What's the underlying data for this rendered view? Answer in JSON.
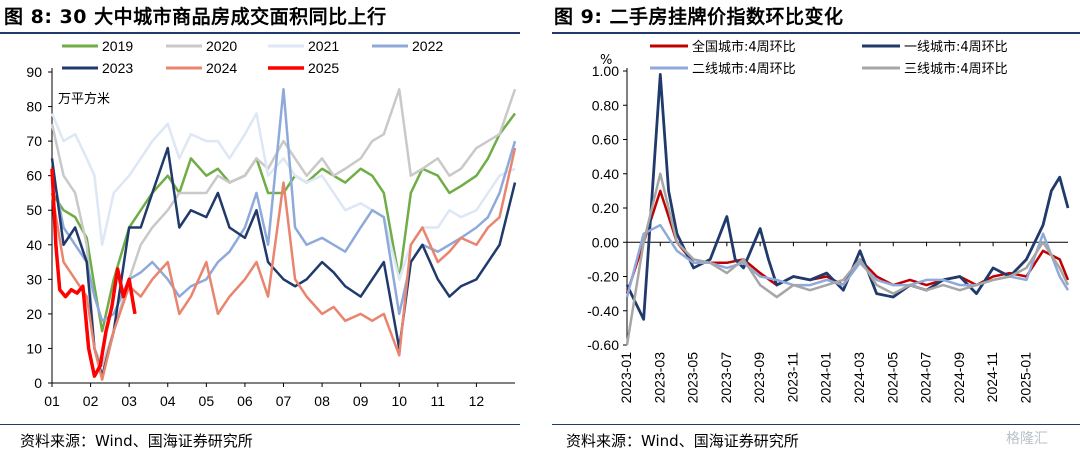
{
  "left_panel": {
    "title": "图 8:  30 大中城市商品房成交面积同比上行",
    "source": "资料来源：Wind、国海证券研究所"
  },
  "right_panel": {
    "title": "图 9:  二手房挂牌价指数环比变化",
    "source": "资料来源：Wind、国海证券研究所"
  },
  "watermark": "格隆汇",
  "chart_data": [
    {
      "type": "line",
      "title": "30 大中城市商品房成交面积同比上行",
      "ylabel": "万平方米",
      "ylim": [
        0,
        90
      ],
      "yticks": [
        0,
        10,
        20,
        30,
        40,
        50,
        60,
        70,
        80,
        90
      ],
      "xlim": [
        1,
        13
      ],
      "xticks": [
        "01",
        "02",
        "03",
        "04",
        "05",
        "06",
        "07",
        "08",
        "09",
        "10",
        "11",
        "12"
      ],
      "legend_position": "top",
      "series": [
        {
          "name": "2019",
          "color": "#70ad47",
          "x": [
            1.0,
            1.3,
            1.6,
            1.9,
            2.1,
            2.3,
            2.6,
            3.0,
            3.3,
            3.6,
            4.0,
            4.3,
            4.6,
            5.0,
            5.3,
            5.6,
            6.0,
            6.3,
            6.6,
            7.0,
            7.3,
            7.6,
            8.0,
            8.3,
            8.6,
            9.0,
            9.3,
            9.6,
            10.0,
            10.3,
            10.6,
            11.0,
            11.3,
            11.6,
            12.0,
            12.3,
            12.6,
            13.0
          ],
          "y": [
            55,
            50,
            48,
            42,
            28,
            15,
            30,
            45,
            50,
            55,
            60,
            55,
            65,
            60,
            62,
            58,
            60,
            65,
            55,
            55,
            60,
            58,
            62,
            60,
            58,
            62,
            60,
            55,
            30,
            55,
            62,
            60,
            55,
            57,
            60,
            65,
            72,
            78
          ]
        },
        {
          "name": "2020",
          "color": "#c9c9c9",
          "x": [
            1.0,
            1.3,
            1.6,
            1.9,
            2.1,
            2.3,
            2.6,
            3.0,
            3.3,
            3.6,
            4.0,
            4.3,
            4.6,
            5.0,
            5.3,
            5.6,
            6.0,
            6.3,
            6.6,
            7.0,
            7.3,
            7.6,
            8.0,
            8.3,
            8.6,
            9.0,
            9.3,
            9.6,
            10.0,
            10.3,
            10.6,
            11.0,
            11.3,
            11.6,
            12.0,
            12.3,
            12.6,
            13.0
          ],
          "y": [
            75,
            60,
            55,
            40,
            10,
            5,
            15,
            30,
            40,
            45,
            50,
            55,
            55,
            55,
            60,
            58,
            60,
            65,
            62,
            70,
            65,
            60,
            65,
            60,
            62,
            65,
            70,
            72,
            85,
            60,
            62,
            65,
            60,
            62,
            68,
            70,
            72,
            85
          ]
        },
        {
          "name": "2021",
          "color": "#dde7f5",
          "x": [
            1.0,
            1.3,
            1.6,
            1.9,
            2.1,
            2.3,
            2.6,
            3.0,
            3.3,
            3.6,
            4.0,
            4.3,
            4.6,
            5.0,
            5.3,
            5.6,
            6.0,
            6.3,
            6.6,
            7.0,
            7.3,
            7.6,
            8.0,
            8.3,
            8.6,
            9.0,
            9.3,
            9.6,
            10.0,
            10.3,
            10.6,
            11.0,
            11.3,
            11.6,
            12.0,
            12.3,
            12.6,
            13.0
          ],
          "y": [
            78,
            70,
            72,
            65,
            60,
            40,
            55,
            60,
            65,
            70,
            75,
            65,
            72,
            70,
            70,
            65,
            72,
            78,
            60,
            65,
            60,
            58,
            60,
            55,
            50,
            52,
            50,
            48,
            30,
            40,
            45,
            45,
            50,
            48,
            50,
            55,
            60,
            62
          ]
        },
        {
          "name": "2022",
          "color": "#8eaadb",
          "x": [
            1.0,
            1.3,
            1.6,
            1.9,
            2.1,
            2.3,
            2.6,
            3.0,
            3.3,
            3.6,
            4.0,
            4.3,
            4.6,
            5.0,
            5.3,
            5.6,
            6.0,
            6.3,
            6.6,
            7.0,
            7.3,
            7.6,
            8.0,
            8.3,
            8.6,
            9.0,
            9.3,
            9.6,
            10.0,
            10.3,
            10.6,
            11.0,
            11.3,
            11.6,
            12.0,
            12.3,
            12.6,
            13.0
          ],
          "y": [
            62,
            45,
            40,
            35,
            25,
            18,
            20,
            30,
            32,
            35,
            30,
            25,
            28,
            30,
            35,
            38,
            45,
            55,
            40,
            85,
            45,
            40,
            42,
            40,
            38,
            45,
            50,
            48,
            20,
            35,
            40,
            38,
            40,
            42,
            45,
            48,
            55,
            70
          ]
        },
        {
          "name": "2023",
          "color": "#1f3a6b",
          "x": [
            1.0,
            1.3,
            1.6,
            1.9,
            2.1,
            2.3,
            2.6,
            3.0,
            3.3,
            3.6,
            4.0,
            4.3,
            4.6,
            5.0,
            5.3,
            5.6,
            6.0,
            6.3,
            6.6,
            7.0,
            7.3,
            7.6,
            8.0,
            8.3,
            8.6,
            9.0,
            9.3,
            9.6,
            10.0,
            10.3,
            10.6,
            11.0,
            11.3,
            11.6,
            12.0,
            12.3,
            12.6,
            13.0
          ],
          "y": [
            65,
            40,
            45,
            35,
            10,
            2,
            15,
            45,
            45,
            55,
            68,
            45,
            50,
            48,
            55,
            45,
            42,
            50,
            35,
            30,
            28,
            30,
            35,
            32,
            28,
            25,
            30,
            35,
            10,
            35,
            40,
            30,
            25,
            28,
            30,
            35,
            40,
            58
          ]
        },
        {
          "name": "2024",
          "color": "#e9846e",
          "x": [
            1.0,
            1.3,
            1.6,
            1.9,
            2.1,
            2.3,
            2.6,
            3.0,
            3.3,
            3.6,
            4.0,
            4.3,
            4.6,
            5.0,
            5.3,
            5.6,
            6.0,
            6.3,
            6.6,
            7.0,
            7.3,
            7.6,
            8.0,
            8.3,
            8.6,
            9.0,
            9.3,
            9.6,
            10.0,
            10.3,
            10.6,
            11.0,
            11.3,
            11.6,
            12.0,
            12.3,
            12.6,
            13.0
          ],
          "y": [
            55,
            35,
            30,
            25,
            10,
            1,
            15,
            28,
            25,
            30,
            35,
            20,
            25,
            35,
            20,
            25,
            30,
            35,
            25,
            58,
            30,
            25,
            20,
            22,
            18,
            20,
            18,
            20,
            8,
            40,
            45,
            35,
            38,
            42,
            40,
            45,
            48,
            68
          ]
        },
        {
          "name": "2025",
          "color": "#ff0000",
          "x": [
            1.0,
            1.1,
            1.2,
            1.35,
            1.5,
            1.65,
            1.8,
            1.95,
            2.1,
            2.25,
            2.4,
            2.55,
            2.7,
            2.85,
            3.0,
            3.15
          ],
          "y": [
            62,
            40,
            27,
            25,
            27,
            26,
            28,
            10,
            2,
            5,
            15,
            22,
            33,
            25,
            30,
            20
          ]
        }
      ]
    },
    {
      "type": "line",
      "title": "二手房挂牌价指数环比变化",
      "ylabel": "%",
      "ylim": [
        -0.6,
        1.0
      ],
      "yticks": [
        "-0.60",
        "-0.40",
        "-0.20",
        "0.00",
        "0.20",
        "0.40",
        "0.60",
        "0.80",
        "1.00"
      ],
      "xticks": [
        "2023-01",
        "2023-03",
        "2023-05",
        "2023-07",
        "2023-09",
        "2023-11",
        "2024-01",
        "2024-03",
        "2024-05",
        "2024-07",
        "2024-09",
        "2024-11",
        "2025-01"
      ],
      "xlim": [
        0,
        26.5
      ],
      "legend_position": "top",
      "series": [
        {
          "name": "全国城市:4周环比",
          "color": "#c00000",
          "x": [
            0,
            1,
            2,
            3,
            4,
            5,
            6,
            7,
            8,
            9,
            10,
            11,
            12,
            13,
            14,
            15,
            16,
            17,
            18,
            19,
            20,
            21,
            22,
            23,
            24,
            25,
            26,
            26.5
          ],
          "y": [
            -0.3,
            0.0,
            0.3,
            0.0,
            -0.12,
            -0.12,
            -0.12,
            -0.1,
            -0.18,
            -0.25,
            -0.2,
            -0.22,
            -0.2,
            -0.25,
            -0.1,
            -0.2,
            -0.25,
            -0.22,
            -0.25,
            -0.22,
            -0.2,
            -0.25,
            -0.2,
            -0.18,
            -0.2,
            -0.05,
            -0.1,
            -0.22
          ]
        },
        {
          "name": "一线城市:4周环比",
          "color": "#1f3a6b",
          "x": [
            0,
            1,
            2,
            2.5,
            3,
            4,
            5,
            6,
            6.5,
            7,
            8,
            8.5,
            9,
            10,
            11,
            12,
            13,
            14,
            15,
            16,
            17,
            18,
            19,
            20,
            21,
            22,
            23,
            24,
            25,
            25.5,
            26,
            26.5
          ],
          "y": [
            -0.25,
            -0.45,
            0.98,
            0.3,
            0.05,
            -0.15,
            -0.1,
            0.15,
            -0.1,
            -0.15,
            0.08,
            -0.1,
            -0.25,
            -0.2,
            -0.22,
            -0.18,
            -0.28,
            -0.05,
            -0.3,
            -0.32,
            -0.25,
            -0.28,
            -0.22,
            -0.2,
            -0.3,
            -0.15,
            -0.2,
            -0.1,
            0.1,
            0.3,
            0.38,
            0.2
          ]
        },
        {
          "name": "二线城市:4周环比",
          "color": "#8eaadb",
          "x": [
            0,
            1,
            2,
            3,
            4,
            5,
            6,
            7,
            8,
            9,
            10,
            11,
            12,
            13,
            14,
            15,
            16,
            17,
            18,
            19,
            20,
            21,
            22,
            23,
            24,
            25,
            26,
            26.5
          ],
          "y": [
            -0.32,
            0.05,
            0.1,
            -0.05,
            -0.12,
            -0.12,
            -0.15,
            -0.12,
            -0.2,
            -0.22,
            -0.25,
            -0.25,
            -0.22,
            -0.25,
            -0.12,
            -0.22,
            -0.25,
            -0.25,
            -0.22,
            -0.22,
            -0.25,
            -0.25,
            -0.22,
            -0.2,
            -0.22,
            0.05,
            -0.2,
            -0.28
          ]
        },
        {
          "name": "三线城市:4周环比",
          "color": "#a6a6a6",
          "x": [
            0,
            1,
            2,
            3,
            4,
            5,
            6,
            7,
            8,
            9,
            10,
            11,
            12,
            13,
            14,
            15,
            16,
            17,
            18,
            19,
            20,
            21,
            22,
            23,
            24,
            25,
            26,
            26.5
          ],
          "y": [
            -0.6,
            0.0,
            0.4,
            0.0,
            -0.1,
            -0.12,
            -0.18,
            -0.1,
            -0.25,
            -0.32,
            -0.25,
            -0.28,
            -0.25,
            -0.22,
            -0.1,
            -0.25,
            -0.3,
            -0.25,
            -0.28,
            -0.25,
            -0.28,
            -0.25,
            -0.22,
            -0.2,
            -0.15,
            0.0,
            -0.15,
            -0.25
          ]
        }
      ]
    }
  ]
}
